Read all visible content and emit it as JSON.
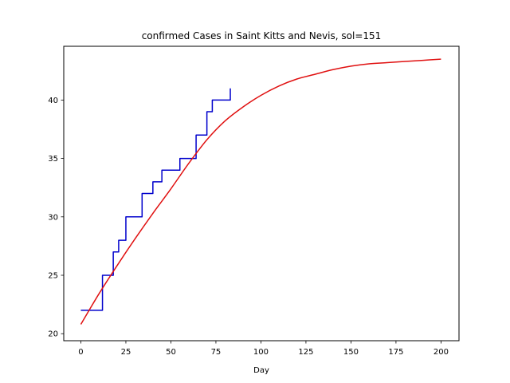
{
  "chart_data": {
    "type": "line",
    "title": "confirmed Cases in Saint Kitts and Nevis, sol=151",
    "xlabel": "Day",
    "ylabel": "",
    "xlim": [
      -9.5,
      210
    ],
    "ylim": [
      19.4,
      44.6
    ],
    "xticks": [
      0,
      25,
      50,
      75,
      100,
      125,
      150,
      175,
      200
    ],
    "yticks": [
      20,
      25,
      30,
      35,
      40
    ],
    "grid": false,
    "series": [
      {
        "style": "step",
        "color": "#0000cc",
        "x": [
          0,
          11,
          12,
          15,
          18,
          20,
          21,
          24,
          25,
          33,
          34,
          38,
          40,
          44,
          45,
          54,
          55,
          63,
          64,
          69,
          70,
          72,
          73,
          81,
          83
        ],
        "y": [
          22,
          22,
          25,
          25,
          27,
          27,
          28,
          28,
          30,
          30,
          32,
          32,
          33,
          33,
          34,
          34,
          35,
          35,
          37,
          37,
          39,
          39,
          40,
          40,
          41
        ]
      },
      {
        "style": "curve",
        "color": "#e01010",
        "x": [
          0,
          10,
          20,
          30,
          40,
          50,
          60,
          70,
          80,
          90,
          100,
          110,
          120,
          130,
          140,
          150,
          160,
          170,
          180,
          190,
          200
        ],
        "y": [
          20.8,
          23.4,
          25.8,
          28.1,
          30.3,
          32.4,
          34.6,
          36.6,
          38.2,
          39.4,
          40.4,
          41.2,
          41.8,
          42.2,
          42.6,
          42.9,
          43.1,
          43.2,
          43.3,
          43.4,
          43.5
        ]
      }
    ]
  }
}
